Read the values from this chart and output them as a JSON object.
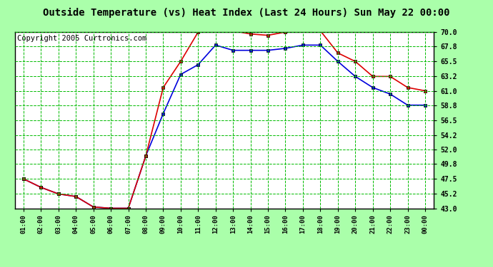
{
  "title": "Outside Temperature (vs) Heat Index (Last 24 Hours) Sun May 22 00:00",
  "copyright": "Copyright 2005 Curtronics.com",
  "x_labels": [
    "01:00",
    "02:00",
    "03:00",
    "04:00",
    "05:00",
    "06:00",
    "07:00",
    "08:00",
    "09:00",
    "10:00",
    "11:00",
    "12:00",
    "13:00",
    "14:00",
    "15:00",
    "16:00",
    "17:00",
    "18:00",
    "19:00",
    "20:00",
    "21:00",
    "22:00",
    "23:00",
    "00:00"
  ],
  "blue_data": [
    47.5,
    46.2,
    45.2,
    44.8,
    43.2,
    43.0,
    43.0,
    51.0,
    57.5,
    63.5,
    65.0,
    68.0,
    67.2,
    67.2,
    67.2,
    67.5,
    68.0,
    68.0,
    65.5,
    63.2,
    61.5,
    60.5,
    58.8,
    58.8
  ],
  "red_data": [
    47.5,
    46.2,
    45.2,
    44.8,
    43.2,
    43.0,
    43.0,
    51.0,
    61.5,
    65.5,
    70.0,
    70.2,
    70.2,
    69.7,
    69.5,
    70.0,
    70.2,
    70.2,
    66.8,
    65.5,
    63.2,
    63.2,
    61.5,
    61.0
  ],
  "ylim": [
    43.0,
    70.0
  ],
  "yticks": [
    43.0,
    45.2,
    47.5,
    49.8,
    52.0,
    54.2,
    56.5,
    58.8,
    61.0,
    63.2,
    65.5,
    67.8,
    70.0
  ],
  "bg_color": "#aaffaa",
  "plot_bg": "#ffffff",
  "grid_color": "#00bb00",
  "blue_color": "#0000dd",
  "red_color": "#dd0000",
  "title_fontsize": 10,
  "copyright_fontsize": 7.5
}
